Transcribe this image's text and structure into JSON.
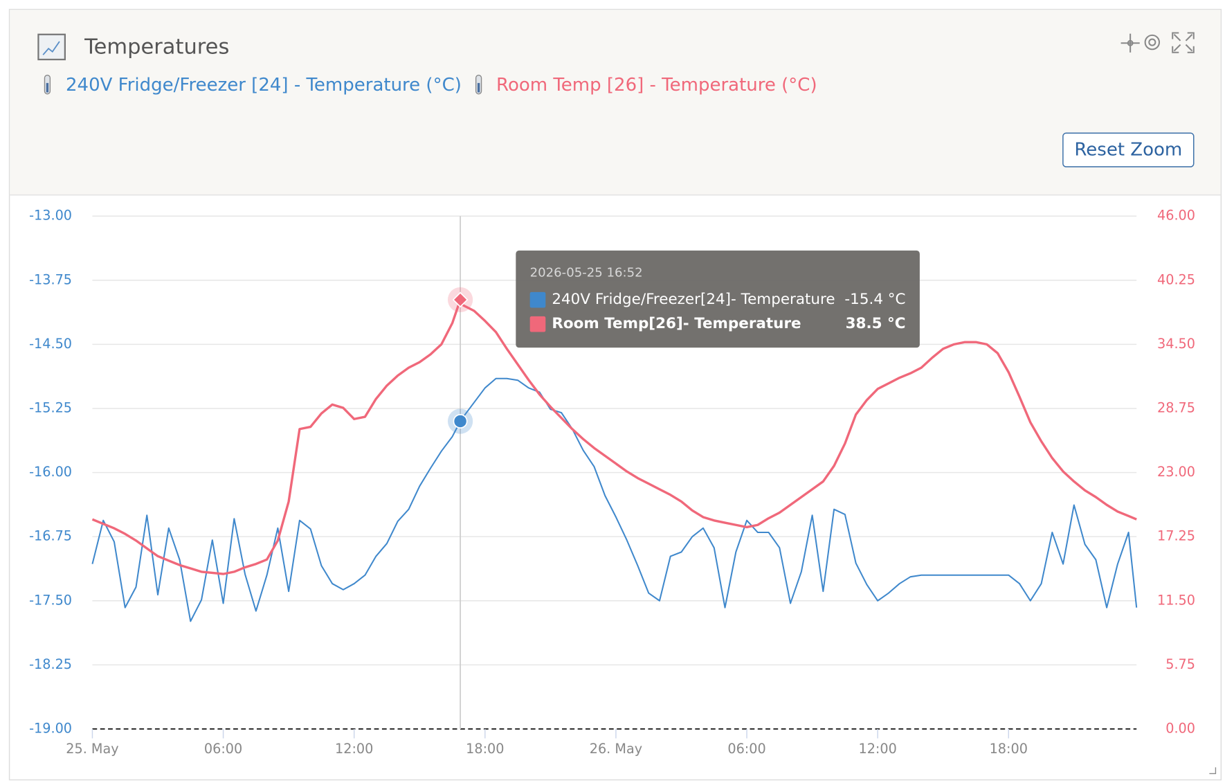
{
  "chart_data": {
    "type": "line",
    "title": "Temperatures",
    "reset_zoom": "Reset Zoom",
    "x": [
      "2026-05-25 00:00",
      "2026-05-25 00:30",
      "2026-05-25 01:00",
      "2026-05-25 01:30",
      "2026-05-25 02:00",
      "2026-05-25 02:30",
      "2026-05-25 03:00",
      "2026-05-25 03:30",
      "2026-05-25 04:00",
      "2026-05-25 04:30",
      "2026-05-25 05:00",
      "2026-05-25 05:30",
      "2026-05-25 06:00",
      "2026-05-25 06:30",
      "2026-05-25 07:00",
      "2026-05-25 07:30",
      "2026-05-25 08:00",
      "2026-05-25 08:30",
      "2026-05-25 09:00",
      "2026-05-25 09:30",
      "2026-05-25 10:00",
      "2026-05-25 10:30",
      "2026-05-25 11:00",
      "2026-05-25 11:30",
      "2026-05-25 12:00",
      "2026-05-25 12:30",
      "2026-05-25 13:00",
      "2026-05-25 13:30",
      "2026-05-25 14:00",
      "2026-05-25 14:30",
      "2026-05-25 15:00",
      "2026-05-25 15:30",
      "2026-05-25 16:00",
      "2026-05-25 16:30",
      "2026-05-25 16:52",
      "2026-05-25 17:00",
      "2026-05-25 17:30",
      "2026-05-25 18:00",
      "2026-05-25 18:30",
      "2026-05-25 19:00",
      "2026-05-25 19:30",
      "2026-05-25 20:00",
      "2026-05-25 20:30",
      "2026-05-25 21:00",
      "2026-05-25 21:30",
      "2026-05-25 22:00",
      "2026-05-25 22:30",
      "2026-05-25 23:00",
      "2026-05-25 23:30",
      "2026-05-26 00:00",
      "2026-05-26 00:30",
      "2026-05-26 01:00",
      "2026-05-26 01:30",
      "2026-05-26 02:00",
      "2026-05-26 02:30",
      "2026-05-26 03:00",
      "2026-05-26 03:30",
      "2026-05-26 04:00",
      "2026-05-26 04:30",
      "2026-05-26 05:00",
      "2026-05-26 05:30",
      "2026-05-26 06:00",
      "2026-05-26 06:30",
      "2026-05-26 07:00",
      "2026-05-26 07:30",
      "2026-05-26 08:00",
      "2026-05-26 08:30",
      "2026-05-26 09:00",
      "2026-05-26 09:30",
      "2026-05-26 10:00",
      "2026-05-26 10:30",
      "2026-05-26 11:00",
      "2026-05-26 11:30",
      "2026-05-26 12:00",
      "2026-05-26 12:30",
      "2026-05-26 13:00",
      "2026-05-26 13:30",
      "2026-05-26 14:00",
      "2026-05-26 14:30",
      "2026-05-26 15:00",
      "2026-05-26 15:30",
      "2026-05-26 16:00",
      "2026-05-26 16:30",
      "2026-05-26 17:00",
      "2026-05-26 17:30",
      "2026-05-26 18:00",
      "2026-05-26 18:30",
      "2026-05-26 19:00",
      "2026-05-26 19:30",
      "2026-05-26 20:00",
      "2026-05-26 20:30",
      "2026-05-26 21:00",
      "2026-05-26 21:30",
      "2026-05-26 22:00",
      "2026-05-26 22:30",
      "2026-05-26 23:00",
      "2026-05-26 23:30",
      "2026-05-26 23:52"
    ],
    "series": [
      {
        "name": "240V Fridge/Freezer [24] - Temperature (°C)",
        "color": "#3f88cc",
        "axis": "y",
        "values": [
          -17.07,
          -16.56,
          -16.81,
          -17.58,
          -17.34,
          -16.5,
          -17.43,
          -16.65,
          -17.02,
          -17.74,
          -17.49,
          -16.79,
          -17.53,
          -16.54,
          -17.19,
          -17.62,
          -17.2,
          -16.65,
          -17.39,
          -16.56,
          -16.66,
          -17.09,
          -17.3,
          -17.37,
          -17.3,
          -17.2,
          -16.98,
          -16.83,
          -16.57,
          -16.43,
          -16.16,
          -15.95,
          -15.75,
          -15.58,
          -15.4,
          -15.35,
          -15.18,
          -15.01,
          -14.9,
          -14.9,
          -14.92,
          -15.01,
          -15.06,
          -15.26,
          -15.3,
          -15.49,
          -15.74,
          -15.93,
          -16.27,
          -16.52,
          -16.79,
          -17.09,
          -17.41,
          -17.5,
          -16.98,
          -16.93,
          -16.75,
          -16.65,
          -16.88,
          -17.58,
          -16.93,
          -16.56,
          -16.7,
          -16.7,
          -16.88,
          -17.53,
          -17.16,
          -16.5,
          -17.39,
          -16.43,
          -16.49,
          -17.06,
          -17.31,
          -17.5,
          -17.41,
          -17.3,
          -17.22,
          -17.2,
          -17.2,
          -17.2,
          -17.2,
          -17.2,
          -17.2,
          -17.2,
          -17.2,
          -17.2,
          -17.3,
          -17.5,
          -17.3,
          -16.7,
          -17.07,
          -16.38,
          -16.84,
          -17.02,
          -17.58,
          -17.07,
          -16.7,
          -17.58
        ]
      },
      {
        "name": "Room Temp [26] - Temperature (°C)",
        "color": "#f0687a",
        "axis": "y2",
        "values": [
          18.8,
          18.4,
          18.0,
          17.5,
          16.9,
          16.2,
          15.5,
          15.1,
          14.7,
          14.4,
          14.1,
          14.0,
          13.9,
          14.1,
          14.5,
          14.8,
          15.2,
          16.9,
          20.4,
          26.9,
          27.1,
          28.3,
          29.1,
          28.8,
          27.8,
          28.0,
          29.6,
          30.8,
          31.7,
          32.4,
          32.9,
          33.6,
          34.5,
          36.4,
          38.5,
          38.0,
          37.5,
          36.6,
          35.6,
          34.1,
          32.7,
          31.3,
          30.0,
          28.9,
          27.9,
          26.9,
          26.0,
          25.2,
          24.5,
          23.8,
          23.1,
          22.5,
          22.0,
          21.5,
          21.0,
          20.4,
          19.6,
          19.0,
          18.7,
          18.5,
          18.3,
          18.1,
          18.3,
          18.9,
          19.4,
          20.1,
          20.8,
          21.5,
          22.2,
          23.6,
          25.6,
          28.2,
          29.5,
          30.5,
          31.0,
          31.5,
          31.9,
          32.4,
          33.3,
          34.1,
          34.5,
          34.7,
          34.7,
          34.5,
          33.7,
          32.0,
          29.8,
          27.5,
          25.8,
          24.3,
          23.1,
          22.2,
          21.4,
          20.8,
          20.1,
          19.5,
          19.1,
          18.8
        ]
      }
    ],
    "xlim": [
      "2026-05-25 00:00",
      "2026-05-26 23:52"
    ],
    "xticks": [
      {
        "value": "2026-05-25 00:00",
        "label": "25. May"
      },
      {
        "value": "2026-05-25 06:00",
        "label": "06:00"
      },
      {
        "value": "2026-05-25 12:00",
        "label": "12:00"
      },
      {
        "value": "2026-05-25 18:00",
        "label": "18:00"
      },
      {
        "value": "2026-05-26 00:00",
        "label": "26. May"
      },
      {
        "value": "2026-05-26 06:00",
        "label": "06:00"
      },
      {
        "value": "2026-05-26 12:00",
        "label": "12:00"
      },
      {
        "value": "2026-05-26 18:00",
        "label": "18:00"
      }
    ],
    "ylim": [
      -19,
      -13
    ],
    "yticks": [
      {
        "value": -13,
        "label": "-13.00"
      },
      {
        "value": -13.75,
        "label": "-13.75"
      },
      {
        "value": -14.5,
        "label": "-14.50"
      },
      {
        "value": -15.25,
        "label": "-15.25"
      },
      {
        "value": -16,
        "label": "-16.00"
      },
      {
        "value": -16.75,
        "label": "-16.75"
      },
      {
        "value": -17.5,
        "label": "-17.50"
      },
      {
        "value": -18.25,
        "label": "-18.25"
      },
      {
        "value": -19,
        "label": "-19.00"
      }
    ],
    "y2lim": [
      0,
      46
    ],
    "y2ticks": [
      {
        "value": 46,
        "label": "46.00"
      },
      {
        "value": 40.25,
        "label": "40.25"
      },
      {
        "value": 34.5,
        "label": "34.50"
      },
      {
        "value": 28.75,
        "label": "28.75"
      },
      {
        "value": 23,
        "label": "23.00"
      },
      {
        "value": 17.25,
        "label": "17.25"
      },
      {
        "value": 11.5,
        "label": "11.50"
      },
      {
        "value": 5.75,
        "label": "5.75"
      },
      {
        "value": 0,
        "label": "0.00"
      }
    ],
    "grid": true,
    "tooltip": {
      "time": "2026-05-25 16:52",
      "items": [
        {
          "name": "240V Fridge/Freezer[24]- Temperature",
          "value": -15.4,
          "value_label": "-15.4 °C"
        },
        {
          "name": "Room Temp[26]- Temperature",
          "value": 38.5,
          "value_label": "38.5 °C"
        }
      ]
    }
  }
}
